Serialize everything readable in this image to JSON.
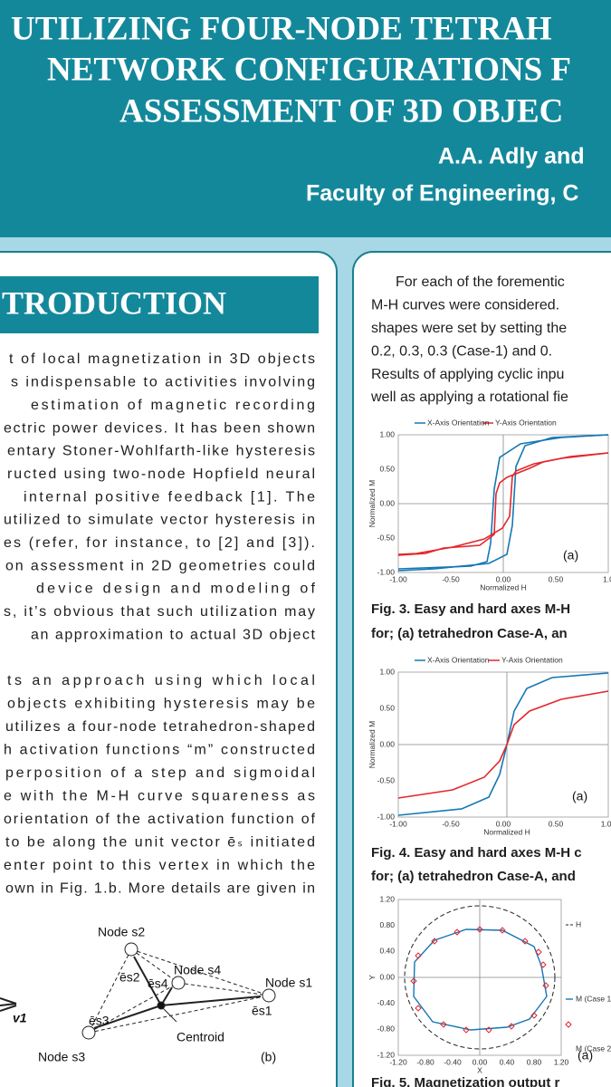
{
  "header": {
    "title_lines": [
      "UTILIZING FOUR-NODE TETRAH",
      "NETWORK CONFIGURATIONS F",
      "ASSESSMENT OF 3D OBJEC"
    ],
    "authors": "A.A. Adly and",
    "affiliation": "Faculty of Engineering, C"
  },
  "left": {
    "heading": "TRODUCTION",
    "paragraph_1": [
      "t of local magnetization in 3D objects",
      "s indispensable to activities involving",
      "estimation of magnetic recording",
      "ectric power devices. It has been shown",
      "entary Stoner-Wohlfarth-like hysteresis",
      "ructed using two-node Hopfield neural",
      "internal positive feedback [1].  The",
      "utilized to simulate vector hysteresis in",
      "es (refer, for instance, to [2] and [3]).",
      "on assessment in 2D geometries could",
      "device design and modeling of",
      "s, it’s obvious that such utilization may",
      "an approximation to actual 3D object"
    ],
    "paragraph_2": [
      "ts an approach using which local",
      "objects exhibiting hysteresis may be",
      "utilizes a four-node tetrahedron-shaped",
      "h activation functions “m” constructed",
      "perposition of a step and sigmoidal",
      "e with the M-H curve squareness as",
      "orientation of the activation function of",
      "to be along the unit vector ēₛ initiated",
      "enter point to this vertex in which the",
      "own in Fig. 1.b. More details are given in"
    ],
    "figure_1b": {
      "nodes": [
        "Node s2",
        "Node s4",
        "Node s1",
        "Node s3"
      ],
      "centroid": "Centroid",
      "vectors": [
        "ēs2",
        "ēs4",
        "ēs1",
        "ēs3"
      ],
      "v": "v1",
      "label": "(b)"
    }
  },
  "right": {
    "lines": [
      "For each of the forementic",
      "M-H curves were considered.",
      "shapes were set by setting the",
      "0.2, 0.3, 0.3 (Case-1) and 0.",
      "Results of applying cyclic inpu",
      "well as applying a rotational fie"
    ],
    "fig3": {
      "legend": [
        "X-Axis Orientation",
        "Y-Axis Orientation"
      ],
      "yticks": [
        "1.00",
        "0.50",
        "0.00",
        "-0.50",
        "-1.00"
      ],
      "xticks": [
        "-1.00",
        "-0.50",
        "0.00",
        "0.50",
        "1.0"
      ],
      "ylabel": "Normalized M",
      "xlabel": "Normalized H",
      "panel": "(a)",
      "caption": [
        "Fig. 3. Easy and hard axes M-H",
        "for; (a) tetrahedron Case-A, an"
      ]
    },
    "fig4": {
      "legend": [
        "X-Axis Orientation",
        "Y-Axis Orientation"
      ],
      "yticks": [
        "1.00",
        "0.50",
        "0.00",
        "-0.50",
        "-1.00"
      ],
      "xticks": [
        "-1.00",
        "-0.50",
        "0.00",
        "0.50",
        "1.00"
      ],
      "ylabel": "Normalized M",
      "xlabel": "Normalized H",
      "panel": "(a)",
      "caption": [
        "Fig. 4. Easy and hard axes M-H c",
        "for; (a) tetrahedron Case-A, and"
      ]
    },
    "fig5": {
      "legend": [
        "H",
        "M (Case 1",
        "M (Case 2"
      ],
      "yticks": [
        "1.20",
        "0.80",
        "0.40",
        "0.00",
        "-0.40",
        "-0.80",
        "-1.20"
      ],
      "xticks": [
        "-1.20",
        "-0.80",
        "-0.40",
        "0.00",
        "0.40",
        "0.80",
        "1.20"
      ],
      "ylabel": "Y",
      "xlabel": "X",
      "panel": "(a)",
      "caption": [
        "Fig. 5. Magnetization output r"
      ]
    }
  }
}
